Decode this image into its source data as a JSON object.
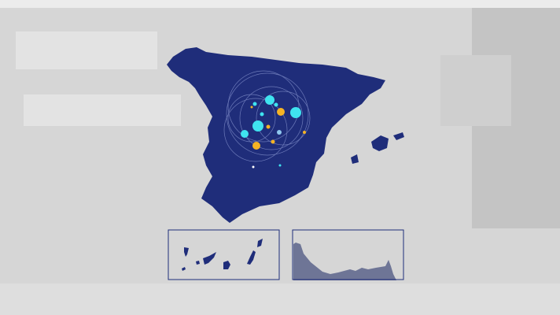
{
  "colors": {
    "background": "#d6d6d6",
    "map_fill": "#1f2d7a",
    "inset_border": "#1f2d7a",
    "inset_fill_ceuta_melilla": "#6e7596",
    "marker_cyan": "#3fe3f0",
    "marker_yellow": "#f5b324",
    "orbit_lines": "#7f8cc8"
  },
  "map": {
    "regions": [
      "spain-mainland",
      "balearic-islands",
      "canary-islands-inset",
      "ceuta-melilla-inset"
    ],
    "markers": [
      {
        "color": "cyan",
        "size": "large"
      },
      {
        "color": "cyan",
        "size": "large"
      },
      {
        "color": "cyan",
        "size": "large"
      },
      {
        "color": "cyan",
        "size": "medium"
      },
      {
        "color": "yellow",
        "size": "medium"
      },
      {
        "color": "yellow",
        "size": "medium"
      },
      {
        "color": "cyan",
        "size": "small"
      },
      {
        "color": "cyan",
        "size": "small"
      },
      {
        "color": "yellow",
        "size": "small"
      },
      {
        "color": "yellow",
        "size": "small"
      }
    ]
  }
}
